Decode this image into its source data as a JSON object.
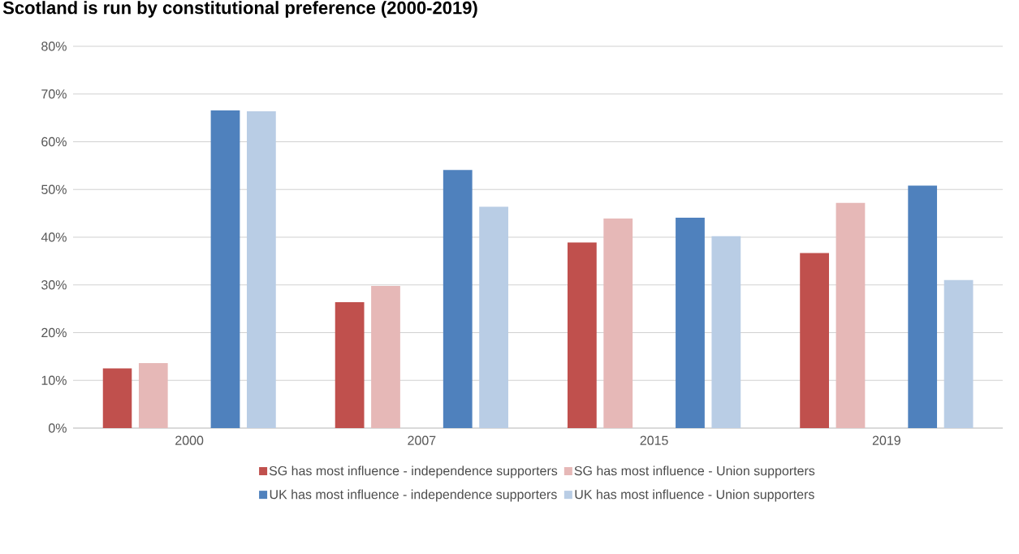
{
  "chart_data": {
    "type": "bar",
    "title": "Scotland is run by constitutional preference (2000-2019)",
    "categories": [
      "2000",
      "2007",
      "2015",
      "2019"
    ],
    "series": [
      {
        "name": "SG has most influence - independence supporters",
        "color": "#c0504d",
        "values": [
          12.5,
          26.4,
          38.9,
          36.7
        ]
      },
      {
        "name": "SG has most influence - Union supporters",
        "color": "#e6b8b7",
        "values": [
          13.6,
          29.8,
          43.9,
          47.2
        ]
      },
      {
        "name": "UK has most influence - independence supporters",
        "color": "#4f81bd",
        "values": [
          66.6,
          54.1,
          44.1,
          50.8
        ]
      },
      {
        "name": "UK has most influence - Union supporters",
        "color": "#b9cde5",
        "values": [
          66.4,
          46.4,
          40.2,
          31.0
        ]
      }
    ],
    "ylim": [
      0,
      80
    ],
    "yticks": [
      {
        "value": 0,
        "label": "0%"
      },
      {
        "value": 10,
        "label": "10%"
      },
      {
        "value": 20,
        "label": "20%"
      },
      {
        "value": 30,
        "label": "30%"
      },
      {
        "value": 40,
        "label": "40%"
      },
      {
        "value": 50,
        "label": "50%"
      },
      {
        "value": 60,
        "label": "60%"
      },
      {
        "value": 70,
        "label": "70%"
      },
      {
        "value": 80,
        "label": "80%"
      }
    ],
    "grid": "y",
    "legend": "bottom"
  }
}
